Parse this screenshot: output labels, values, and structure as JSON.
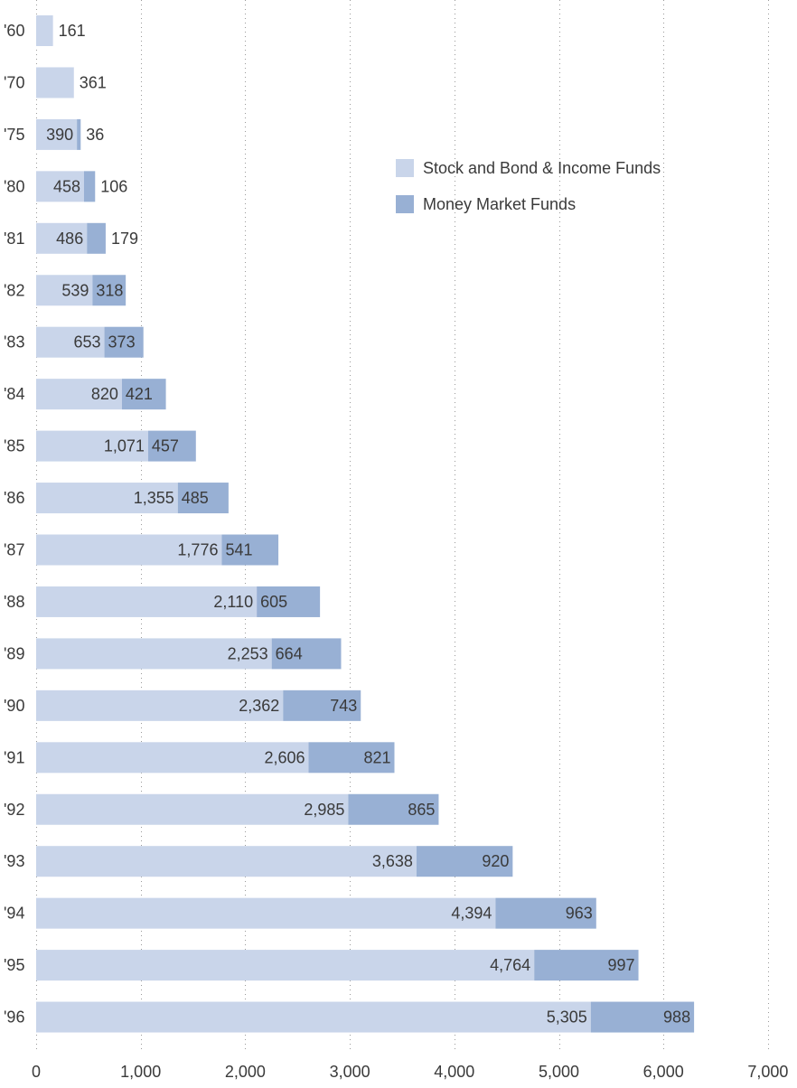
{
  "chart_data": {
    "type": "bar",
    "orientation": "horizontal",
    "stacked": true,
    "categories": [
      "'60",
      "'70",
      "'75",
      "'80",
      "'81",
      "'82",
      "'83",
      "'84",
      "'85",
      "'86",
      "'87",
      "'88",
      "'89",
      "'90",
      "'91",
      "'92",
      "'93",
      "'94",
      "'95",
      "'96"
    ],
    "series": [
      {
        "name": "Stock and Bond & Income Funds",
        "color": "#c9d5ea",
        "values": [
          161,
          361,
          390,
          458,
          486,
          539,
          653,
          820,
          1071,
          1355,
          1776,
          2110,
          2253,
          2362,
          2606,
          2985,
          3638,
          4394,
          4764,
          5305
        ],
        "labels": [
          "161",
          "361",
          "390",
          "458",
          "486",
          "539",
          "653",
          "820",
          "1,071",
          "1,355",
          "1,776",
          "2,110",
          "2,253",
          "2,362",
          "2,606",
          "2,985",
          "3,638",
          "4,394",
          "4,764",
          "5,305"
        ]
      },
      {
        "name": "Money Market Funds",
        "color": "#98b0d4",
        "values": [
          0,
          0,
          36,
          106,
          179,
          318,
          373,
          421,
          457,
          485,
          541,
          605,
          664,
          743,
          821,
          865,
          920,
          963,
          997,
          988
        ],
        "labels": [
          "",
          "",
          "36",
          "106",
          "179",
          "318",
          "373",
          "421",
          "457",
          "485",
          "541",
          "605",
          "664",
          "743",
          "821",
          "865",
          "920",
          "963",
          "997",
          "988"
        ]
      }
    ],
    "xlim": [
      0,
      7000
    ],
    "x_ticks": [
      0,
      1000,
      2000,
      3000,
      4000,
      5000,
      6000,
      7000
    ],
    "x_tick_labels": [
      "0",
      "1,000",
      "2,000",
      "3,000",
      "4,000",
      "5,000",
      "6,000",
      "7,000"
    ],
    "grid": "vertical dotted",
    "legend_position": "top-right"
  }
}
